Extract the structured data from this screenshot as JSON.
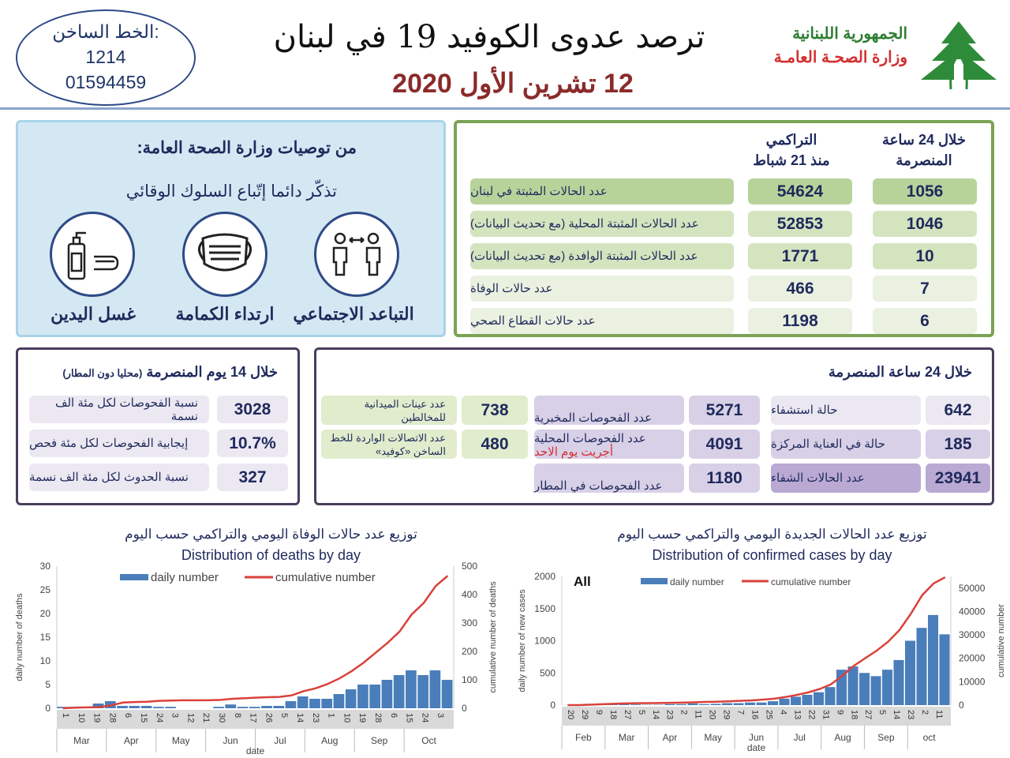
{
  "hotline": {
    "label": "الخط الساخن:",
    "number1": "1214",
    "number2": "01594459"
  },
  "header": {
    "title": "ترصد عدوى الكوفيد 19 في لبنان",
    "date": "12 تشرين الأول 2020",
    "republic": "الجمهورية اللبنانية",
    "ministry": "وزارة الصحـة العامـة",
    "colors": {
      "republic": "#2e7d32",
      "ministry": "#d32f2f",
      "date": "#8b2a2a"
    }
  },
  "recommendations": {
    "title": "من توصيات وزارة الصحة العامة:",
    "subtitle": "تذكّر دائما إتّباع السلوك الوقائي",
    "items": [
      {
        "label": "التباعد الاجتماعي",
        "icon": "social-distance-icon"
      },
      {
        "label": "ارتداء الكمامة",
        "icon": "face-mask-icon"
      },
      {
        "label": "غسل اليدين",
        "icon": "hand-wash-icon"
      }
    ]
  },
  "stats": {
    "col_24h": "خلال 24 ساعة المنصرمة",
    "col_cum1": "التراكمي",
    "col_cum2": "منذ 21 شباط",
    "rows": [
      {
        "label": "عدد الحالات المثبتة في لبنان",
        "cum": "54624",
        "day": "1056"
      },
      {
        "label": "عدد الحالات المثبتة المحلية (مع تحديث البيانات)",
        "cum": "52853",
        "day": "1046"
      },
      {
        "label": "عدد الحالات المثبتة الوافدة (مع تحديث البيانات)",
        "cum": "1771",
        "day": "10"
      },
      {
        "label": "عدد حالات الوفاة",
        "cum": "466",
        "day": "7"
      },
      {
        "label": "عدد حالات القطاع الصحي",
        "cum": "1198",
        "day": "6"
      }
    ]
  },
  "last14": {
    "title": "خلال 14 يوم المنصرمة",
    "title_note": "(محليا دون المطار)",
    "rows": [
      {
        "label": "نسبة الفحوصات لكل مئة الف نسمة",
        "value": "3028"
      },
      {
        "label": "إيجابية الفحوصات لكل مئة فحص",
        "value": "10.7%"
      },
      {
        "label": "نسبة الحدوث لكل مئة الف نسمة",
        "value": "327"
      }
    ]
  },
  "last24": {
    "title": "خلال 24 ساعة المنصرمة",
    "hospital": [
      {
        "label": "حالة استشفاء",
        "value": "642"
      },
      {
        "label": "حالة في العناية المركزة",
        "value": "185"
      },
      {
        "label": "عدد الحالات الشفاء",
        "value": "23941"
      }
    ],
    "tests": [
      {
        "label": "عدد الفحوصات المخبرية",
        "value": "5271"
      },
      {
        "label": "عدد الفحوصات المحلية",
        "note": "أجريت يوم الاحد",
        "value": "4091"
      },
      {
        "label": "عدد الفحوصات في المطار",
        "value": "1180"
      }
    ],
    "other": [
      {
        "label": "عدد عينات الميدانية للمخالطين",
        "value": "738"
      },
      {
        "label": "عدد الاتصالات الواردة للخط الساخن «كوفيد»",
        "value": "480"
      }
    ]
  },
  "chart_data": [
    {
      "type": "bar+line",
      "title_ar": "توزيع عدد حالات  الوفاة اليومي والتراكمي حسب اليوم",
      "title": "Distribution of deaths by day",
      "xlabel": "date",
      "ylabel": "daily number of deaths",
      "y2label": "cumulative number of deaths",
      "ylim": [
        0,
        30
      ],
      "y2lim": [
        0,
        500
      ],
      "yticks": [
        0,
        5,
        10,
        15,
        20,
        25,
        30
      ],
      "y2ticks": [
        0,
        100,
        200,
        300,
        400,
        500
      ],
      "legend": "top",
      "grid": false,
      "series": [
        {
          "name": "daily number",
          "color": "#4a7ebb"
        },
        {
          "name": "cumulative number",
          "color": "#d9413b"
        }
      ],
      "day_ticks": [
        "1",
        "10",
        "19",
        "28",
        "6",
        "15",
        "24",
        "3",
        "12",
        "21",
        "30",
        "8",
        "17",
        "26",
        "5",
        "14",
        "23",
        "1",
        "10",
        "19",
        "28",
        "6",
        "15",
        "24",
        "3"
      ],
      "months": [
        "Mar",
        "Apr",
        "May",
        "Jun",
        "Jul",
        "Aug",
        "Sep",
        "Oct"
      ],
      "x": [
        "03-01",
        "03-08",
        "03-15",
        "03-22",
        "03-29",
        "04-05",
        "04-12",
        "04-19",
        "04-26",
        "05-03",
        "05-10",
        "05-17",
        "05-24",
        "05-31",
        "06-07",
        "06-14",
        "06-21",
        "06-28",
        "07-05",
        "07-12",
        "07-19",
        "07-26",
        "08-02",
        "08-09",
        "08-16",
        "08-23",
        "08-30",
        "09-06",
        "09-13",
        "09-20",
        "09-27",
        "10-04",
        "10-11"
      ],
      "daily": [
        0.3,
        0.3,
        0.3,
        1,
        1.5,
        0.5,
        0.5,
        0.5,
        0.3,
        0.3,
        0,
        0,
        0,
        0.3,
        0.8,
        0.3,
        0.3,
        0.5,
        0.5,
        1.5,
        2.5,
        2,
        2,
        3,
        4,
        5,
        5,
        6,
        7,
        8,
        7,
        8,
        6
      ],
      "cumulative": [
        0,
        2,
        3,
        4,
        10,
        20,
        22,
        23,
        26,
        27,
        28,
        28,
        28,
        29,
        33,
        35,
        37,
        39,
        40,
        45,
        60,
        70,
        85,
        105,
        130,
        160,
        195,
        230,
        270,
        330,
        370,
        430,
        466
      ]
    },
    {
      "type": "bar+line",
      "title_ar": "توزيع عدد الحالات الجديدة اليومي والتراكمي حسب اليوم",
      "title": "Distribution of confirmed cases by day",
      "annotation": "All",
      "xlabel": "date",
      "ylabel": "daily number of new cases",
      "y2label": "cumulative number",
      "ylim": [
        0,
        2000
      ],
      "y2lim": [
        0,
        55000
      ],
      "yticks": [
        0,
        500,
        1000,
        1500,
        2000
      ],
      "y2ticks": [
        0,
        10000,
        20000,
        30000,
        40000,
        50000
      ],
      "legend": "top",
      "grid": false,
      "series": [
        {
          "name": "daily number",
          "color": "#4a7ebb"
        },
        {
          "name": "cumulative number",
          "color": "#d9413b"
        }
      ],
      "day_ticks": [
        "20",
        "29",
        "9",
        "18",
        "27",
        "5",
        "14",
        "23",
        "2",
        "11",
        "20",
        "29",
        "7",
        "16",
        "25",
        "4",
        "13",
        "22",
        "31",
        "9",
        "18",
        "27",
        "5",
        "14",
        "23",
        "2",
        "11"
      ],
      "months": [
        "Feb",
        "Mar",
        "Apr",
        "May",
        "Jun",
        "Jul",
        "Aug",
        "Sep",
        "oct"
      ],
      "x": [
        "02-20",
        "02-27",
        "03-05",
        "03-12",
        "03-19",
        "03-26",
        "04-02",
        "04-09",
        "04-16",
        "04-23",
        "04-30",
        "05-07",
        "05-14",
        "05-21",
        "05-28",
        "06-04",
        "06-11",
        "06-18",
        "06-25",
        "07-02",
        "07-09",
        "07-16",
        "07-23",
        "07-30",
        "08-06",
        "08-13",
        "08-20",
        "08-27",
        "09-03",
        "09-10",
        "09-17",
        "09-24",
        "10-01",
        "10-08"
      ],
      "daily": [
        1,
        5,
        20,
        25,
        20,
        30,
        10,
        5,
        5,
        15,
        15,
        25,
        15,
        20,
        30,
        30,
        40,
        40,
        60,
        100,
        130,
        160,
        200,
        280,
        550,
        600,
        500,
        450,
        550,
        700,
        1000,
        1200,
        1400,
        1100
      ],
      "cumulative": [
        1,
        10,
        150,
        400,
        550,
        700,
        800,
        830,
        880,
        950,
        1050,
        1200,
        1350,
        1450,
        1600,
        1800,
        2000,
        2300,
        2700,
        3400,
        4300,
        5400,
        6800,
        8800,
        12500,
        16700,
        20000,
        23200,
        27000,
        32000,
        39000,
        47000,
        52000,
        54624
      ]
    }
  ]
}
